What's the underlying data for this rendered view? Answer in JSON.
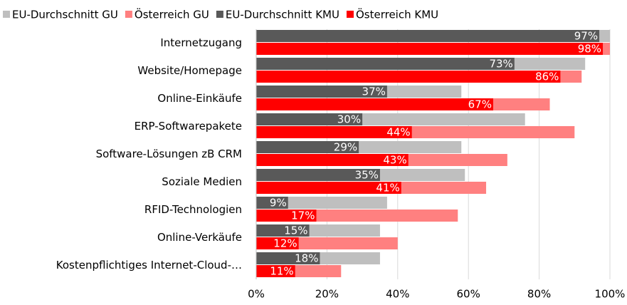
{
  "chart_data": {
    "type": "bar",
    "orientation": "horizontal",
    "categories": [
      "Internetzugang",
      "Website/Homepage",
      "Online-Einkäufe",
      "ERP-Softwarepakete",
      "Software-Lösungen zB CRM",
      "Soziale Medien",
      "RFID-Technologien",
      "Online-Verkäufe",
      "Kostenpflichtiges Internet-Cloud-…"
    ],
    "series": [
      {
        "name": "EU-Durchschnitt GU",
        "color": "#bfbfbf",
        "values": [
          100,
          93,
          58,
          76,
          58,
          59,
          37,
          35,
          35
        ]
      },
      {
        "name": "Österreich GU",
        "color": "#ff8080",
        "values": [
          100,
          92,
          83,
          90,
          71,
          65,
          57,
          40,
          24
        ]
      },
      {
        "name": "EU-Durchschnitt KMU",
        "color": "#595959",
        "values": [
          97,
          73,
          37,
          30,
          29,
          35,
          9,
          15,
          18
        ],
        "value_labels": [
          "97%",
          "73%",
          "37%",
          "30%",
          "29%",
          "35%",
          "9%",
          "15%",
          "18%"
        ]
      },
      {
        "name": "Österreich KMU",
        "color": "#ff0000",
        "values": [
          98,
          86,
          67,
          44,
          43,
          41,
          17,
          12,
          11
        ],
        "value_labels": [
          "98%",
          "86%",
          "67%",
          "44%",
          "43%",
          "41%",
          "17%",
          "12%",
          "11%"
        ]
      }
    ],
    "xlim": [
      0,
      100
    ],
    "xticks": [
      {
        "value": 0,
        "label": "0%"
      },
      {
        "value": 20,
        "label": "20%"
      },
      {
        "value": 40,
        "label": "40%"
      },
      {
        "value": 60,
        "label": "60%"
      },
      {
        "value": 80,
        "label": "80%"
      },
      {
        "value": 100,
        "label": "100%"
      }
    ],
    "grid": true,
    "legend": "top"
  }
}
